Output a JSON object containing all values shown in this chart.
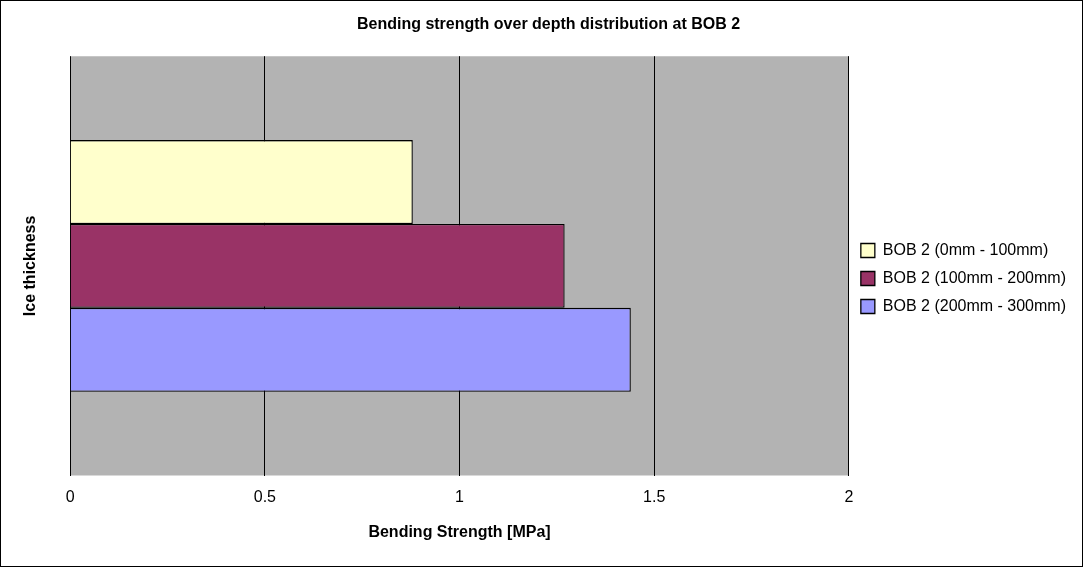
{
  "chart_data": {
    "type": "bar",
    "orientation": "horizontal",
    "title": "Bending strength over depth distribution at BOB 2",
    "xlabel": "Bending Strength [MPa]",
    "ylabel": "Ice thickness",
    "categories": [
      null
    ],
    "series": [
      {
        "name": "BOB 2 (0mm - 100mm)",
        "color": "#ffffcc",
        "values": [
          0.88
        ]
      },
      {
        "name": "BOB 2 (100mm - 200mm)",
        "color": "#993366",
        "values": [
          1.27
        ]
      },
      {
        "name": "BOB 2 (200mm - 300mm)",
        "color": "#9999ff",
        "values": [
          1.44
        ]
      }
    ],
    "xlim": [
      0,
      2
    ],
    "xticks": [
      0,
      0.5,
      1,
      1.5,
      2
    ],
    "grid": "x",
    "legend": "right",
    "tick_labels": "x"
  }
}
